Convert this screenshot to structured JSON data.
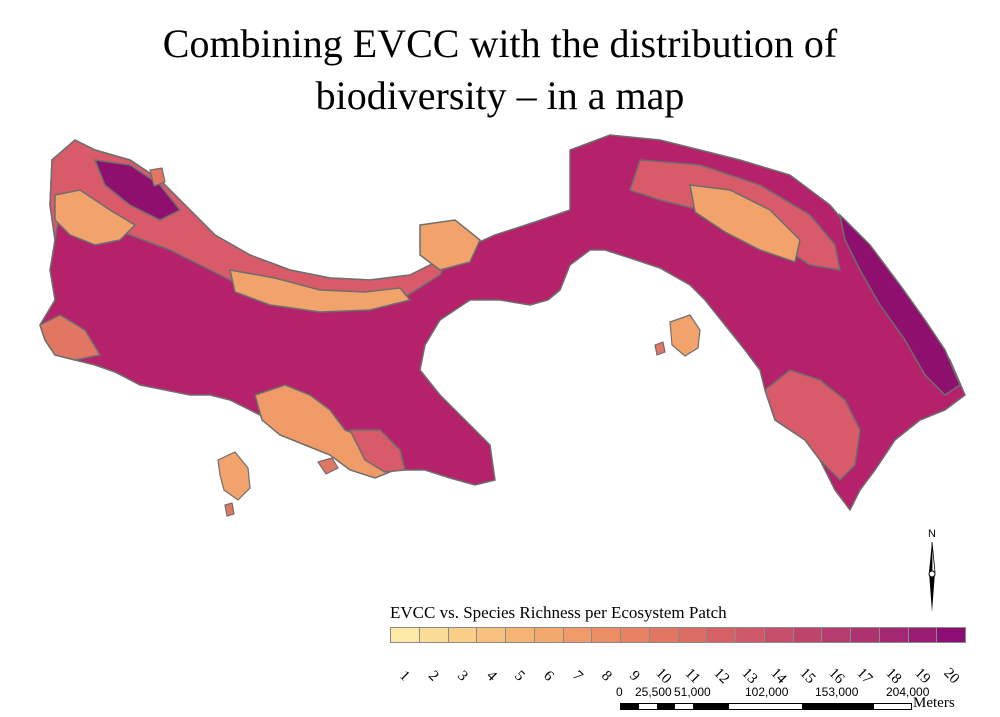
{
  "title": {
    "line1": "Combining EVCC with the distribution of",
    "line2": "biodiversity – in a map"
  },
  "map": {
    "colors": {
      "outline": "#6e6e6e",
      "low": "#f2a36b",
      "mid": "#d95b6a",
      "high": "#b5226b",
      "top": "#8f0f6e"
    }
  },
  "legend": {
    "title": "EVCC vs. Species Richness per Ecosystem Patch",
    "classes": [
      {
        "label": "1",
        "color": "#fde9a6"
      },
      {
        "label": "2",
        "color": "#fbdc96"
      },
      {
        "label": "3",
        "color": "#f9cf88"
      },
      {
        "label": "4",
        "color": "#f7c17c"
      },
      {
        "label": "5",
        "color": "#f5b472"
      },
      {
        "label": "6",
        "color": "#f3a86c"
      },
      {
        "label": "7",
        "color": "#f09b67"
      },
      {
        "label": "8",
        "color": "#ec8e64"
      },
      {
        "label": "9",
        "color": "#e78262"
      },
      {
        "label": "10",
        "color": "#e17762"
      },
      {
        "label": "11",
        "color": "#db6c63"
      },
      {
        "label": "12",
        "color": "#d46265"
      },
      {
        "label": "13",
        "color": "#cd5868"
      },
      {
        "label": "14",
        "color": "#c54f6b"
      },
      {
        "label": "15",
        "color": "#bd456c"
      },
      {
        "label": "16",
        "color": "#b53c6e"
      },
      {
        "label": "17",
        "color": "#ac3270"
      },
      {
        "label": "18",
        "color": "#a22871"
      },
      {
        "label": "19",
        "color": "#981d72"
      },
      {
        "label": "20",
        "color": "#8c0d73"
      }
    ]
  },
  "north_arrow": {
    "label": "N"
  },
  "scale": {
    "labels": [
      "0",
      "25,500",
      "51,000",
      "102,000",
      "153,000",
      "204,000"
    ],
    "units": "Meters"
  }
}
